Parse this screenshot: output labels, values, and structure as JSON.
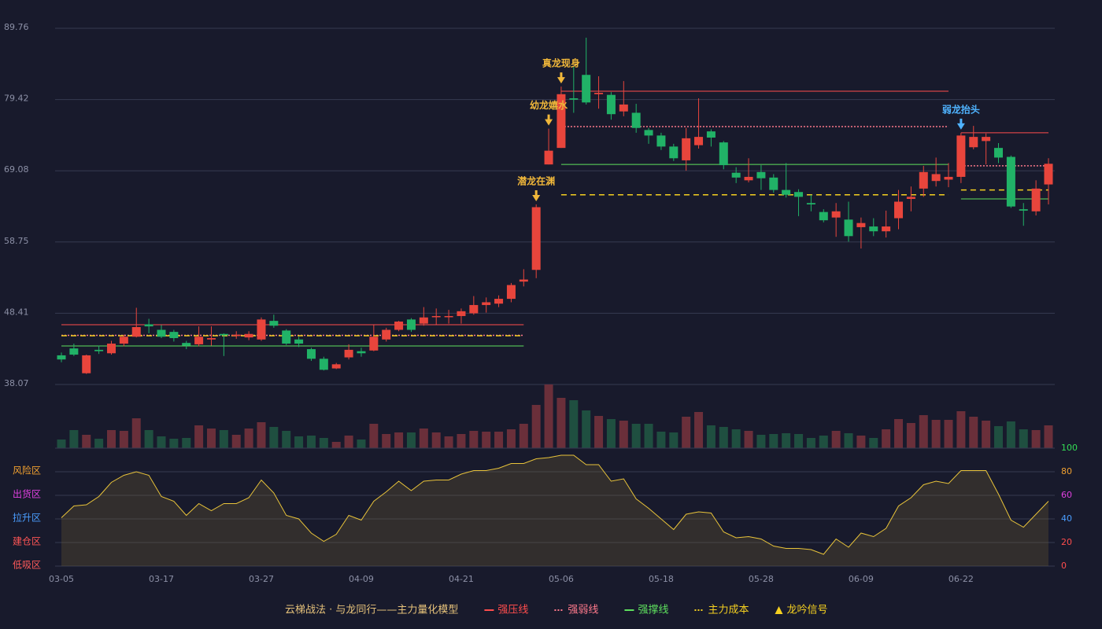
{
  "chart_data": [
    {
      "type": "candlestick",
      "ylim": [
        38.07,
        89.76
      ],
      "yticks": [
        38.07,
        48.41,
        58.75,
        69.08,
        79.42,
        89.76
      ],
      "grid": true,
      "up_color": "#e8453c",
      "down_color": "#21b267",
      "open": [
        42.3,
        43.3,
        39.7,
        43.1,
        42.6,
        44.0,
        45.0,
        46.8,
        46.0,
        45.7,
        44.1,
        43.9,
        44.6,
        45.4,
        45.1,
        44.9,
        44.6,
        47.3,
        45.9,
        44.6,
        43.2,
        41.8,
        40.4,
        42.0,
        42.9,
        43.0,
        44.6,
        46.0,
        47.5,
        46.9,
        47.9,
        47.9,
        48.0,
        48.4,
        49.6,
        49.8,
        50.5,
        53.0,
        54.7,
        70.0,
        72.4,
        79.6,
        83.0,
        80.2,
        80.1,
        77.7,
        77.5,
        75.0,
        74.2,
        72.6,
        70.6,
        72.8,
        74.8,
        73.2,
        68.8,
        67.7,
        68.9,
        68.1,
        66.3,
        66.0,
        64.4,
        63.1,
        62.3,
        62.0,
        60.9,
        61.0,
        60.3,
        62.2,
        65.0,
        66.5,
        67.6,
        67.8,
        68.2,
        72.5,
        73.4,
        72.4,
        71.1,
        63.5,
        63.2,
        67.1
      ],
      "close": [
        41.7,
        42.4,
        42.3,
        42.9,
        44.0,
        45.0,
        46.4,
        46.5,
        45.0,
        44.8,
        43.7,
        45.0,
        44.8,
        45.2,
        45.3,
        45.4,
        47.5,
        46.6,
        44.0,
        44.0,
        41.8,
        40.2,
        41.0,
        43.1,
        42.6,
        45.0,
        46.0,
        47.2,
        46.0,
        47.8,
        48.0,
        48.0,
        48.7,
        49.6,
        50.0,
        50.5,
        52.5,
        53.3,
        63.8,
        72.0,
        80.2,
        79.4,
        79.0,
        80.4,
        77.3,
        78.7,
        75.3,
        74.2,
        72.6,
        70.9,
        73.8,
        74.0,
        73.9,
        69.9,
        68.1,
        68.2,
        68.0,
        66.3,
        65.6,
        65.3,
        64.2,
        61.9,
        63.2,
        59.6,
        61.5,
        60.3,
        61.0,
        64.6,
        65.3,
        68.9,
        68.6,
        68.2,
        74.2,
        74.0,
        74.0,
        71.0,
        63.9,
        63.3,
        66.5,
        70.1
      ],
      "high": [
        42.7,
        44.0,
        42.4,
        43.7,
        44.4,
        45.3,
        49.2,
        47.6,
        46.7,
        46.0,
        44.4,
        46.5,
        46.5,
        45.5,
        45.8,
        45.8,
        47.8,
        48.2,
        46.1,
        45.0,
        43.4,
        42.1,
        41.2,
        43.9,
        43.4,
        46.7,
        46.3,
        47.3,
        47.7,
        49.3,
        49.1,
        48.9,
        49.1,
        50.9,
        50.7,
        51.0,
        52.8,
        54.8,
        64.2,
        75.2,
        81.3,
        84.2,
        88.4,
        82.8,
        80.5,
        82.1,
        78.8,
        75.3,
        74.6,
        73.0,
        75.3,
        79.6,
        75.1,
        73.4,
        69.6,
        70.9,
        69.9,
        68.6,
        70.2,
        66.4,
        65.6,
        63.5,
        64.4,
        64.6,
        62.3,
        62.2,
        63.3,
        66.3,
        66.8,
        69.8,
        71.0,
        70.2,
        74.6,
        75.6,
        74.5,
        73.1,
        71.3,
        64.4,
        67.7,
        70.9
      ],
      "low": [
        41.3,
        42.2,
        39.6,
        42.5,
        42.4,
        43.6,
        44.9,
        45.5,
        44.8,
        44.3,
        43.2,
        43.6,
        43.7,
        42.2,
        44.7,
        44.5,
        44.4,
        46.3,
        43.8,
        43.5,
        41.5,
        40.1,
        40.3,
        41.7,
        42.1,
        42.9,
        44.3,
        45.8,
        45.7,
        46.6,
        46.8,
        46.9,
        46.9,
        48.2,
        48.5,
        49.3,
        50.0,
        52.3,
        53.5,
        70.0,
        72.4,
        77.5,
        78.7,
        78.1,
        76.5,
        77.0,
        74.6,
        73.0,
        72.1,
        70.5,
        69.1,
        72.3,
        72.6,
        69.3,
        67.3,
        67.4,
        66.3,
        65.9,
        65.2,
        62.5,
        63.2,
        61.6,
        59.5,
        58.8,
        57.8,
        59.6,
        59.4,
        60.6,
        63.2,
        65.3,
        66.8,
        66.7,
        67.3,
        72.2,
        70.0,
        70.2,
        63.7,
        61.1,
        62.6,
        64.2
      ],
      "lines": [
        {
          "name": "强压线",
          "color": "#ff4d4d",
          "dash": "none",
          "segments": [
            {
              "from": 0,
              "to": 37,
              "value": 46.74
            },
            {
              "from": 40,
              "to": 71,
              "value": 80.63
            },
            {
              "from": 72,
              "to": 79,
              "value": 74.6
            }
          ]
        },
        {
          "name": "强弱线",
          "color": "#ff7a8c",
          "dash": "2,2",
          "segments": [
            {
              "from": 0,
              "to": 37,
              "value": 45.2
            },
            {
              "from": 40,
              "to": 71,
              "value": 75.5
            },
            {
              "from": 72,
              "to": 79,
              "value": 69.8
            }
          ]
        },
        {
          "name": "强撑线",
          "color": "#5ee05e",
          "dash": "none",
          "segments": [
            {
              "from": 0,
              "to": 37,
              "value": 43.66
            },
            {
              "from": 40,
              "to": 71,
              "value": 70.0
            },
            {
              "from": 72,
              "to": 79,
              "value": 65.0
            }
          ]
        },
        {
          "name": "主力成本",
          "color": "#f5d020",
          "dash": "7,5",
          "segments": [
            {
              "from": 0,
              "to": 37,
              "value": 45.14
            },
            {
              "from": 40,
              "to": 71,
              "value": 65.6
            },
            {
              "from": 72,
              "to": 79,
              "value": 66.3
            }
          ]
        }
      ],
      "signals": [
        {
          "index": 38,
          "label": "潜龙在渊",
          "color": "#f0b73a"
        },
        {
          "index": 39,
          "label": "幼龙嬉水",
          "color": "#f0b73a"
        },
        {
          "index": 40,
          "label": "真龙现身",
          "color": "#f0b73a"
        },
        {
          "index": 72,
          "label": "弱龙抬头",
          "color": "#4fb3ff"
        }
      ],
      "signal_name": "龙吟信号",
      "signal_color": "#f5d020",
      "legend_title": "云梯战法 · 与龙同行——主力量化模型",
      "legend_title_color": "#e6c27a"
    },
    {
      "type": "bar",
      "ylim": [
        0,
        81
      ],
      "values": [
        11,
        23,
        17,
        12,
        23,
        22,
        38,
        23,
        15,
        12,
        13,
        29,
        25,
        23,
        17,
        25,
        33,
        27,
        22,
        15,
        16,
        13,
        8,
        16,
        11,
        31,
        18,
        20,
        20,
        25,
        20,
        15,
        18,
        22,
        21,
        21,
        24,
        31,
        55,
        81,
        64,
        61,
        48,
        41,
        37,
        35,
        31,
        31,
        21,
        20,
        40,
        46,
        29,
        27,
        24,
        22,
        17,
        18,
        19,
        18,
        13,
        16,
        22,
        19,
        16,
        13,
        24,
        37,
        32,
        42,
        36,
        36,
        47,
        40,
        35,
        28,
        34,
        24,
        23,
        29
      ],
      "up_color": "#6a2f3a",
      "down_color": "#1f4f40"
    },
    {
      "type": "area",
      "categories": [
        "03-05",
        null,
        null,
        null,
        null,
        null,
        null,
        null,
        "03-17",
        null,
        null,
        null,
        null,
        null,
        null,
        null,
        "03-27",
        null,
        null,
        null,
        null,
        null,
        null,
        null,
        "04-09",
        null,
        null,
        null,
        null,
        null,
        null,
        null,
        "04-21",
        null,
        null,
        null,
        null,
        null,
        null,
        null,
        "05-06",
        null,
        null,
        null,
        null,
        null,
        null,
        null,
        "05-18",
        null,
        null,
        null,
        null,
        null,
        null,
        null,
        "05-28",
        null,
        null,
        null,
        null,
        null,
        null,
        null,
        "06-09",
        null,
        null,
        null,
        null,
        null,
        null,
        null,
        "06-22",
        null,
        null,
        null,
        null,
        null,
        null,
        null
      ],
      "values": [
        41,
        51,
        52,
        59,
        71,
        77,
        80,
        77,
        59,
        55,
        43,
        53,
        47,
        53,
        53,
        58,
        73,
        62,
        43,
        40,
        28,
        21,
        27,
        43,
        39,
        55,
        63,
        72,
        64,
        72,
        73,
        73,
        78,
        81,
        81,
        83,
        87,
        87,
        91,
        92,
        94,
        94,
        86,
        86,
        72,
        74,
        57,
        49,
        40,
        31,
        44,
        46,
        45,
        29,
        24,
        25,
        23,
        17,
        15,
        15,
        14,
        10,
        23,
        16,
        28,
        25,
        32,
        51,
        58,
        69,
        72,
        70,
        81,
        81,
        81,
        61,
        39,
        33,
        44,
        55
      ],
      "color": "#e8c33a",
      "ylim": [
        0,
        100
      ],
      "yticks": [
        0,
        20,
        40,
        60,
        80,
        100
      ],
      "ytick_colors": [
        "#ff4d4d",
        "#ff4d4d",
        "#4a9eff",
        "#e040e0",
        "#f0a030",
        "#33dd55"
      ],
      "zones": [
        {
          "label": "风险区",
          "value": 80,
          "color": "#f0a030"
        },
        {
          "label": "出货区",
          "value": 60,
          "color": "#e040e0"
        },
        {
          "label": "拉升区",
          "value": 40,
          "color": "#4a9eff"
        },
        {
          "label": "建仓区",
          "value": 20,
          "color": "#ff5555"
        },
        {
          "label": "低吸区",
          "value": 0,
          "color": "#ff5a5a"
        }
      ]
    }
  ]
}
